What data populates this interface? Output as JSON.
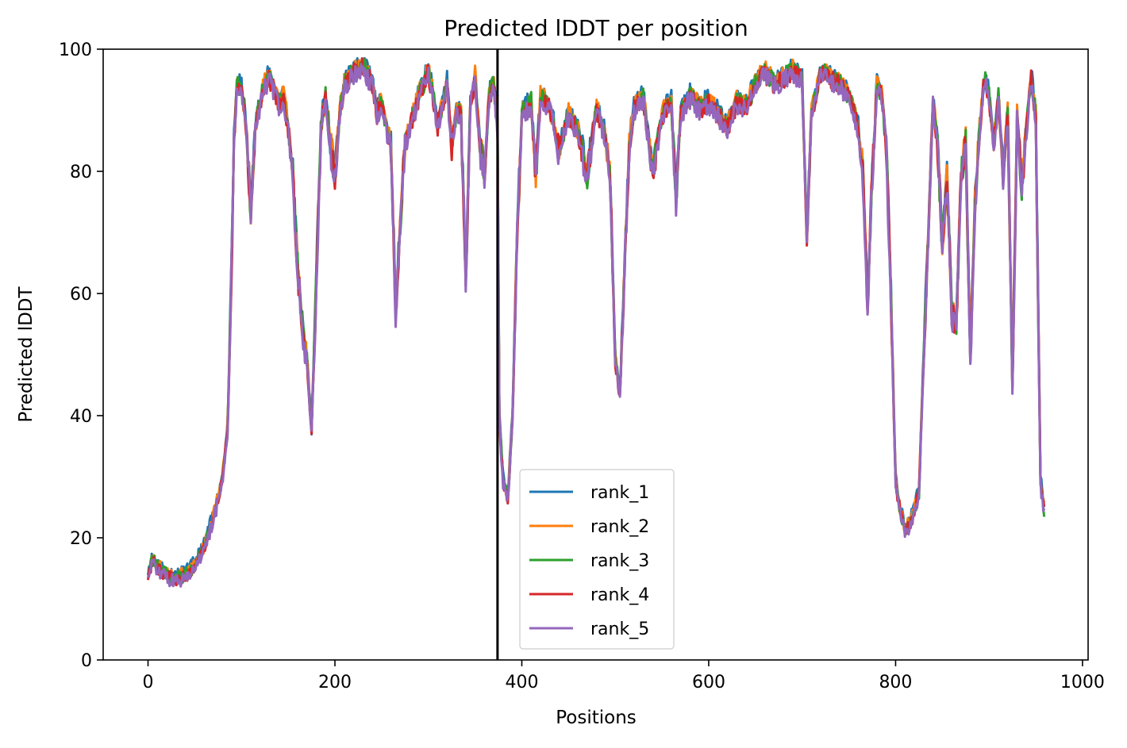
{
  "chart_data": {
    "type": "line",
    "title": "Predicted lDDT per position",
    "xlabel": "Positions",
    "ylabel": "Predicted lDDT",
    "xlim": [
      -48,
      1006
    ],
    "ylim": [
      0,
      100
    ],
    "xticks": [
      0,
      200,
      400,
      600,
      800,
      1000
    ],
    "xtick_labels": [
      "0",
      "200",
      "400",
      "600",
      "800",
      "1000"
    ],
    "yticks": [
      0,
      20,
      40,
      60,
      80,
      100
    ],
    "ytick_labels": [
      "0",
      "20",
      "40",
      "60",
      "80",
      "100"
    ],
    "grid": false,
    "legend_position": "bottom-center",
    "vline": {
      "x": 374,
      "color": "#000000"
    },
    "x_range": [
      0,
      959
    ],
    "profile": [
      [
        0,
        15
      ],
      [
        5,
        17
      ],
      [
        10,
        16
      ],
      [
        20,
        14.5
      ],
      [
        30,
        14
      ],
      [
        40,
        14.5
      ],
      [
        50,
        16
      ],
      [
        60,
        19
      ],
      [
        70,
        24
      ],
      [
        75,
        27
      ],
      [
        80,
        31
      ],
      [
        85,
        38
      ],
      [
        88,
        55
      ],
      [
        92,
        85
      ],
      [
        95,
        95
      ],
      [
        100,
        94
      ],
      [
        105,
        88
      ],
      [
        110,
        74
      ],
      [
        115,
        88
      ],
      [
        120,
        92
      ],
      [
        125,
        95
      ],
      [
        130,
        96
      ],
      [
        135,
        94
      ],
      [
        140,
        92
      ],
      [
        145,
        93
      ],
      [
        150,
        88
      ],
      [
        155,
        80
      ],
      [
        160,
        65
      ],
      [
        165,
        55
      ],
      [
        170,
        50
      ],
      [
        175,
        38
      ],
      [
        180,
        62
      ],
      [
        185,
        88
      ],
      [
        190,
        93
      ],
      [
        195,
        85
      ],
      [
        200,
        80
      ],
      [
        205,
        90
      ],
      [
        210,
        95
      ],
      [
        220,
        97
      ],
      [
        230,
        98
      ],
      [
        240,
        95
      ],
      [
        245,
        90
      ],
      [
        250,
        92
      ],
      [
        255,
        88
      ],
      [
        260,
        85
      ],
      [
        265,
        58
      ],
      [
        270,
        72
      ],
      [
        275,
        85
      ],
      [
        280,
        88
      ],
      [
        290,
        93
      ],
      [
        300,
        97
      ],
      [
        305,
        93
      ],
      [
        310,
        88
      ],
      [
        320,
        95
      ],
      [
        325,
        85
      ],
      [
        330,
        90
      ],
      [
        335,
        90
      ],
      [
        340,
        63
      ],
      [
        345,
        92
      ],
      [
        350,
        96
      ],
      [
        355,
        85
      ],
      [
        360,
        80
      ],
      [
        365,
        93
      ],
      [
        370,
        95
      ],
      [
        374,
        88
      ],
      [
        376,
        40
      ],
      [
        380,
        30
      ],
      [
        385,
        27
      ],
      [
        390,
        40
      ],
      [
        395,
        70
      ],
      [
        400,
        90
      ],
      [
        410,
        92
      ],
      [
        415,
        80
      ],
      [
        420,
        93
      ],
      [
        430,
        91
      ],
      [
        440,
        84
      ],
      [
        450,
        90
      ],
      [
        460,
        87
      ],
      [
        470,
        80
      ],
      [
        480,
        91
      ],
      [
        490,
        86
      ],
      [
        495,
        78
      ],
      [
        500,
        50
      ],
      [
        505,
        44
      ],
      [
        510,
        65
      ],
      [
        515,
        85
      ],
      [
        520,
        91
      ],
      [
        530,
        93
      ],
      [
        540,
        80
      ],
      [
        550,
        90
      ],
      [
        560,
        92
      ],
      [
        565,
        76
      ],
      [
        570,
        90
      ],
      [
        580,
        93
      ],
      [
        590,
        91
      ],
      [
        600,
        92
      ],
      [
        610,
        90
      ],
      [
        620,
        88
      ],
      [
        630,
        92
      ],
      [
        640,
        91
      ],
      [
        650,
        95
      ],
      [
        660,
        97
      ],
      [
        670,
        95
      ],
      [
        680,
        96
      ],
      [
        690,
        97
      ],
      [
        700,
        96
      ],
      [
        705,
        70
      ],
      [
        710,
        90
      ],
      [
        720,
        97
      ],
      [
        730,
        96
      ],
      [
        740,
        95
      ],
      [
        750,
        93
      ],
      [
        760,
        88
      ],
      [
        765,
        80
      ],
      [
        770,
        59
      ],
      [
        775,
        80
      ],
      [
        780,
        95
      ],
      [
        785,
        93
      ],
      [
        790,
        85
      ],
      [
        795,
        60
      ],
      [
        800,
        30
      ],
      [
        805,
        25
      ],
      [
        810,
        22
      ],
      [
        815,
        23
      ],
      [
        820,
        25
      ],
      [
        825,
        28
      ],
      [
        830,
        50
      ],
      [
        835,
        70
      ],
      [
        840,
        92
      ],
      [
        845,
        85
      ],
      [
        850,
        68
      ],
      [
        855,
        80
      ],
      [
        860,
        58
      ],
      [
        865,
        55
      ],
      [
        870,
        80
      ],
      [
        875,
        85
      ],
      [
        880,
        50
      ],
      [
        885,
        75
      ],
      [
        890,
        88
      ],
      [
        895,
        96
      ],
      [
        900,
        93
      ],
      [
        905,
        85
      ],
      [
        910,
        93
      ],
      [
        915,
        80
      ],
      [
        920,
        90
      ],
      [
        925,
        45
      ],
      [
        930,
        90
      ],
      [
        935,
        78
      ],
      [
        940,
        88
      ],
      [
        945,
        96
      ],
      [
        950,
        90
      ],
      [
        955,
        30
      ],
      [
        959,
        25
      ]
    ],
    "series": [
      {
        "name": "rank_1",
        "color": "#1f77b4"
      },
      {
        "name": "rank_2",
        "color": "#ff7f0e"
      },
      {
        "name": "rank_3",
        "color": "#2ca02c"
      },
      {
        "name": "rank_4",
        "color": "#d62728"
      },
      {
        "name": "rank_5",
        "color": "#9467bd"
      }
    ]
  }
}
